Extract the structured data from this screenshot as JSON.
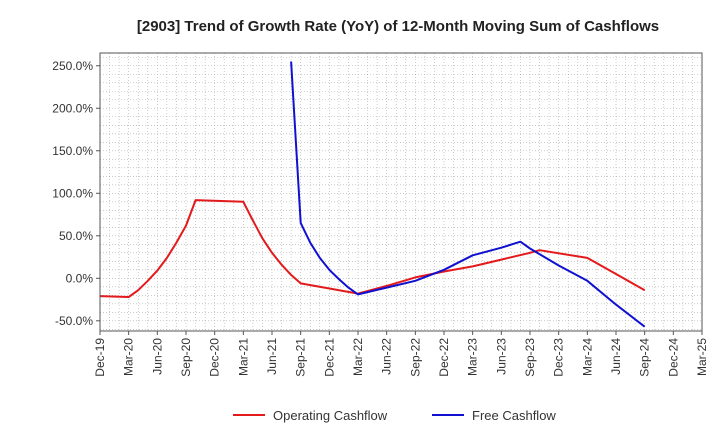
{
  "chart_data": {
    "type": "line",
    "title": "[2903]  Trend of Growth Rate (YoY) of 12-Month Moving Sum of Cashflows",
    "xlabel": "",
    "ylabel": "",
    "ylim": [
      -62,
      265
    ],
    "yticks": [
      -50,
      0,
      50,
      100,
      150,
      200,
      250
    ],
    "ytick_labels": [
      "-50.0%",
      "0.0%",
      "50.0%",
      "100.0%",
      "150.0%",
      "200.0%",
      "250.0%"
    ],
    "x_categories": [
      "Dec-19",
      "Mar-20",
      "Jun-20",
      "Sep-20",
      "Dec-20",
      "Mar-21",
      "Jun-21",
      "Sep-21",
      "Dec-21",
      "Mar-22",
      "Jun-22",
      "Sep-22",
      "Dec-22",
      "Mar-23",
      "Jun-23",
      "Sep-23",
      "Dec-23",
      "Mar-24",
      "Jun-24",
      "Sep-24",
      "Dec-24",
      "Mar-25"
    ],
    "grid": true,
    "legend_position": "bottom-center",
    "series": [
      {
        "name": "Operating Cashflow",
        "color": "#e31a1c",
        "points": [
          [
            "Dec-19",
            -21
          ],
          [
            "Mar-20",
            -22
          ],
          [
            "Apr-20",
            -14
          ],
          [
            "May-20",
            -3
          ],
          [
            "Jun-20",
            9
          ],
          [
            "Jul-20",
            24
          ],
          [
            "Aug-20",
            42
          ],
          [
            "Sep-20",
            62
          ],
          [
            "Oct-20",
            92
          ],
          [
            "Mar-21",
            90
          ],
          [
            "Apr-21",
            68
          ],
          [
            "May-21",
            47
          ],
          [
            "Jun-21",
            30
          ],
          [
            "Jul-21",
            16
          ],
          [
            "Aug-21",
            4
          ],
          [
            "Sep-21",
            -6
          ],
          [
            "Mar-22",
            -18
          ],
          [
            "Jun-22",
            -9
          ],
          [
            "Sep-22",
            1
          ],
          [
            "Dec-22",
            8
          ],
          [
            "Mar-23",
            14
          ],
          [
            "Jun-23",
            22
          ],
          [
            "Sep-23",
            30
          ],
          [
            "Oct-23",
            33
          ],
          [
            "Mar-24",
            24
          ],
          [
            "Jun-24",
            5
          ],
          [
            "Sep-24",
            -14
          ]
        ]
      },
      {
        "name": "Free Cashflow",
        "color": "#1010d0",
        "points": [
          [
            "Aug-21",
            255
          ],
          [
            "Sep-21",
            65
          ],
          [
            "Oct-21",
            42
          ],
          [
            "Nov-21",
            24
          ],
          [
            "Dec-21",
            10
          ],
          [
            "Jan-22",
            -1
          ],
          [
            "Feb-22",
            -11
          ],
          [
            "Mar-22",
            -19
          ],
          [
            "Jun-22",
            -11
          ],
          [
            "Sep-22",
            -3
          ],
          [
            "Dec-22",
            10
          ],
          [
            "Mar-23",
            27
          ],
          [
            "Jun-23",
            36
          ],
          [
            "Aug-23",
            43
          ],
          [
            "Sep-23",
            35
          ],
          [
            "Dec-23",
            15
          ],
          [
            "Mar-24",
            -3
          ],
          [
            "Jun-24",
            -31
          ],
          [
            "Sep-24",
            -57
          ]
        ]
      }
    ]
  }
}
